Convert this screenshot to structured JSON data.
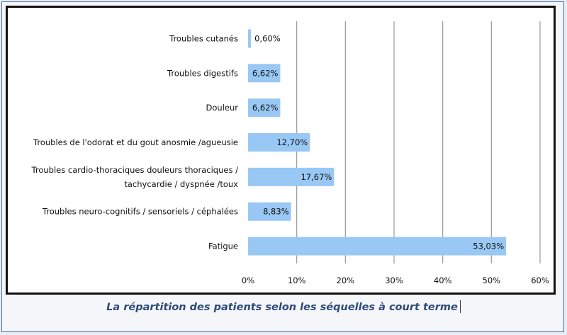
{
  "caption": "La répartition des patients selon les séquelles à court terme",
  "chart_data": {
    "type": "bar",
    "orientation": "horizontal",
    "categories": [
      [
        "Troubles cutanés"
      ],
      [
        "Troubles digestifs"
      ],
      [
        "Douleur"
      ],
      [
        "Troubles de l'odorat et du gout anosmie /agueusie"
      ],
      [
        "Troubles cardio-thoraciques douleurs thoraciques /",
        "tachycardie / dyspnée /toux"
      ],
      [
        "Troubles neuro-cognitifs / sensoriels / céphalées"
      ],
      [
        "Fatigue"
      ]
    ],
    "values": [
      0.6,
      6.62,
      6.62,
      12.7,
      17.67,
      8.83,
      53.03
    ],
    "value_labels": [
      "0,60%",
      "6,62%",
      "6,62%",
      "12,70%",
      "17,67%",
      "8,83%",
      "53,03%"
    ],
    "xlim": [
      0,
      60
    ],
    "xticks": [
      0,
      10,
      20,
      30,
      40,
      50,
      60
    ],
    "xtick_labels": [
      "0%",
      "10%",
      "20%",
      "30%",
      "40%",
      "50%",
      "60%"
    ],
    "grid": "vertical",
    "bar_color": "#99c8f5",
    "gridline_color": "#9a9a9a"
  }
}
